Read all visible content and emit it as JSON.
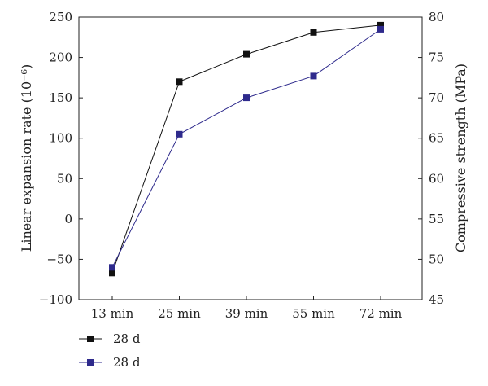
{
  "chart_data": {
    "type": "line",
    "categories": [
      "13 min",
      "25 min",
      "39 min",
      "55 min",
      "72 min"
    ],
    "left_axis": {
      "label": "Linear expansion rate (10⁻⁶)",
      "ylim": [
        -100,
        250
      ],
      "ticks": [
        -100,
        -50,
        0,
        50,
        100,
        150,
        200,
        250
      ],
      "tick_labels": [
        "−100",
        "−50",
        "0",
        "50",
        "100",
        "150",
        "200",
        "250"
      ]
    },
    "right_axis": {
      "label": "Compressive strength (MPa)",
      "ylim": [
        45,
        80
      ],
      "ticks": [
        45,
        50,
        55,
        60,
        65,
        70,
        75,
        80
      ],
      "tick_labels": [
        "45",
        "50",
        "55",
        "60",
        "65",
        "70",
        "75",
        "80"
      ]
    },
    "series": [
      {
        "name": "28 d",
        "axis": "left",
        "color": "#111111",
        "values": [
          -67,
          170,
          204,
          231,
          240
        ]
      },
      {
        "name": "28 d",
        "axis": "right",
        "color": "#2e2a8c",
        "values": [
          49.0,
          65.5,
          70.0,
          72.7,
          78.5
        ]
      }
    ],
    "grid": false,
    "legend": "bottom-left"
  }
}
